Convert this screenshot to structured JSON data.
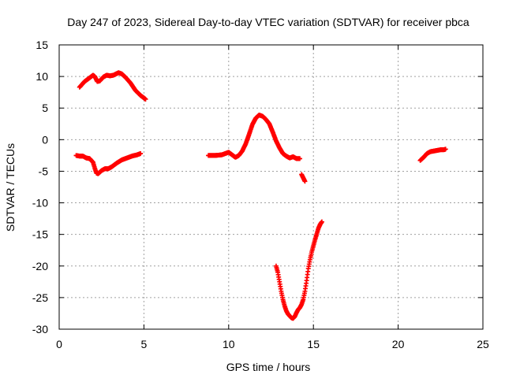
{
  "chart_data": {
    "type": "scatter",
    "title": "Day 247 of 2023, Sidereal Day-to-day VTEC variation (SDTVAR) for receiver pbca",
    "xlabel": "GPS time / hours",
    "ylabel": "SDTVAR / TECUs",
    "xlim": [
      0,
      25
    ],
    "ylim": [
      -30,
      15
    ],
    "x_ticks": [
      0,
      5,
      10,
      15,
      20,
      25
    ],
    "y_ticks": [
      -30,
      -25,
      -20,
      -15,
      -10,
      -5,
      0,
      5,
      10,
      15
    ],
    "grid": true,
    "marker": "plus",
    "series": [
      {
        "name": "SDTVAR",
        "color": "#ff0000",
        "segments": [
          {
            "x": [
              1.2,
              1.5,
              1.8,
              2.0,
              2.1,
              2.25,
              2.4,
              2.6,
              2.8,
              3.0,
              3.2,
              3.5,
              3.7,
              3.9,
              4.2,
              4.5,
              4.8,
              5.1
            ],
            "y": [
              8.3,
              9.2,
              9.8,
              10.2,
              10.0,
              9.2,
              9.3,
              9.9,
              10.2,
              10.1,
              10.2,
              10.6,
              10.4,
              9.9,
              9.0,
              7.8,
              7.0,
              6.4
            ]
          },
          {
            "x": [
              1.0,
              1.2,
              1.4,
              1.6,
              1.8,
              2.0,
              2.1,
              2.2,
              2.3,
              2.5,
              2.7,
              2.9,
              3.1,
              3.4,
              3.7,
              4.0,
              4.3,
              4.6,
              4.8
            ],
            "y": [
              -2.5,
              -2.6,
              -2.6,
              -2.9,
              -3.0,
              -3.6,
              -4.5,
              -5.3,
              -5.4,
              -4.9,
              -4.6,
              -4.6,
              -4.3,
              -3.7,
              -3.2,
              -2.9,
              -2.6,
              -2.4,
              -2.2
            ]
          },
          {
            "x": [
              8.8,
              9.2,
              9.6,
              10.0,
              10.2,
              10.4,
              10.6,
              10.8,
              11.0,
              11.2,
              11.4,
              11.6,
              11.8,
              12.0,
              12.2,
              12.4,
              12.6,
              12.8,
              13.0,
              13.2,
              13.4,
              13.6,
              13.8,
              14.0,
              14.2
            ],
            "y": [
              -2.5,
              -2.5,
              -2.4,
              -2.0,
              -2.4,
              -2.8,
              -2.5,
              -1.8,
              -0.7,
              0.8,
              2.4,
              3.4,
              3.9,
              3.7,
              3.2,
              2.5,
              1.2,
              -0.2,
              -1.3,
              -2.2,
              -2.6,
              -2.9,
              -2.7,
              -3.0,
              -3.0
            ]
          },
          {
            "x": [
              14.3,
              14.5
            ],
            "y": [
              -5.5,
              -6.6
            ]
          },
          {
            "x": [
              12.8,
              12.9,
              13.0,
              13.1,
              13.2,
              13.3,
              13.4,
              13.5,
              13.6,
              13.7,
              13.8,
              13.9,
              14.0,
              14.1,
              14.2,
              14.3,
              14.4,
              14.5,
              14.6,
              14.7,
              14.8,
              14.9,
              15.0,
              15.1,
              15.2,
              15.3,
              15.4,
              15.5
            ],
            "y": [
              -20.0,
              -21.0,
              -22.5,
              -24.0,
              -25.3,
              -26.3,
              -27.1,
              -27.6,
              -27.9,
              -28.2,
              -28.3,
              -28.0,
              -27.4,
              -26.9,
              -26.6,
              -26.1,
              -25.3,
              -24.0,
              -22.3,
              -20.4,
              -19.0,
              -17.8,
              -16.8,
              -15.8,
              -14.9,
              -14.0,
              -13.4,
              -13.0
            ]
          },
          {
            "x": [
              21.3,
              21.5,
              21.7,
              21.9,
              22.1,
              22.3,
              22.5,
              22.7,
              22.8
            ],
            "y": [
              -3.3,
              -2.8,
              -2.2,
              -1.9,
              -1.8,
              -1.7,
              -1.6,
              -1.6,
              -1.5
            ]
          }
        ]
      }
    ]
  }
}
